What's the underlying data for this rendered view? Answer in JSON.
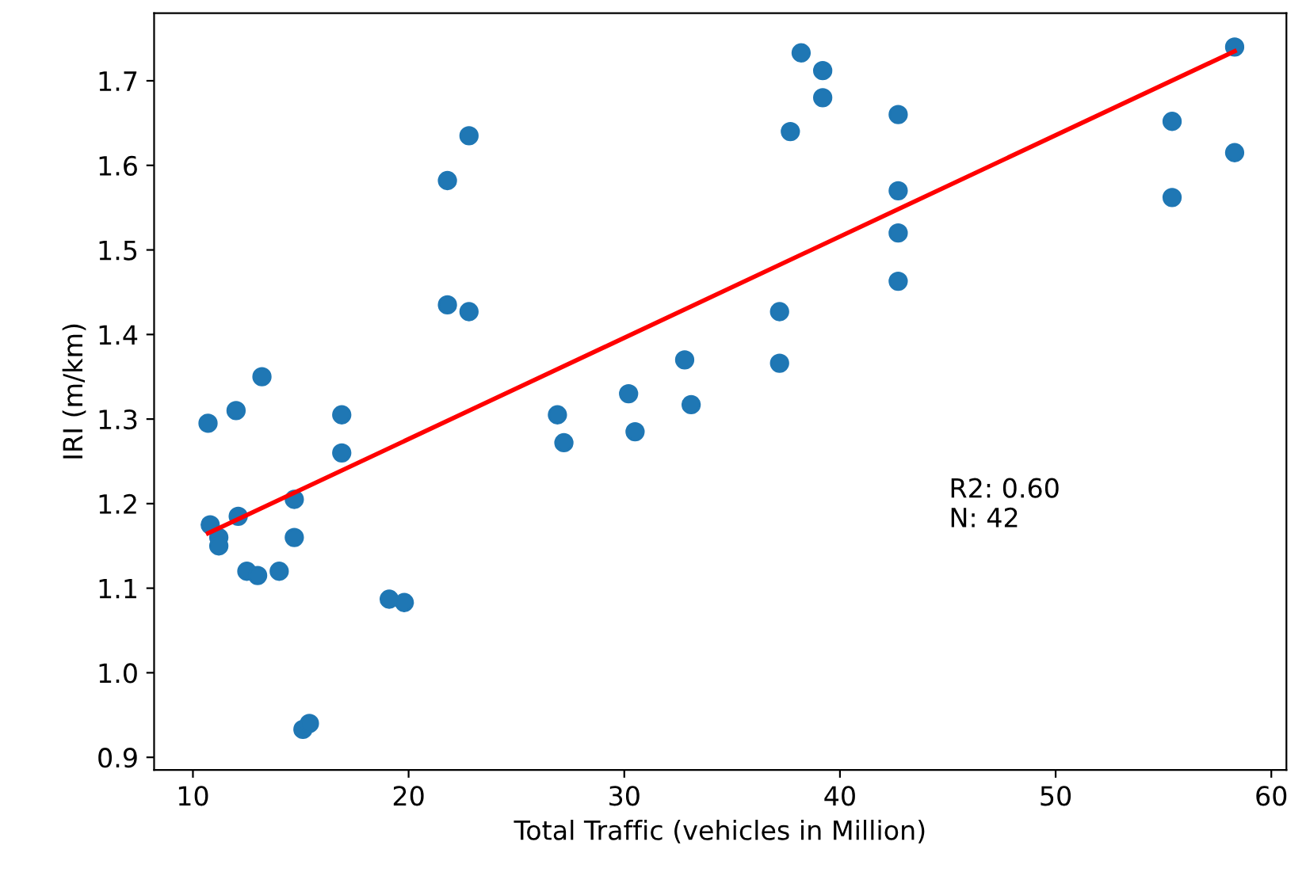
{
  "chart_data": {
    "type": "scatter",
    "xlabel": "Total Traffic (vehicles in Million)",
    "ylabel": "IRI (m/km)",
    "xlim": [
      8.2,
      60.7
    ],
    "ylim": [
      0.885,
      1.78
    ],
    "xticks": [
      10,
      20,
      30,
      40,
      50,
      60
    ],
    "yticks": [
      0.9,
      {
        "value": 1.0,
        "label": "1.0"
      },
      1.1,
      1.2,
      1.3,
      1.4,
      1.5,
      1.6,
      1.7
    ],
    "grid": false,
    "series": [
      {
        "color": "#1f77b4",
        "marker": "circle",
        "x": [
          10.7,
          10.8,
          11.2,
          11.2,
          12.0,
          12.1,
          12.5,
          13.0,
          13.2,
          14.0,
          14.7,
          14.7,
          15.1,
          15.4,
          16.9,
          16.9,
          19.1,
          19.8,
          21.8,
          21.8,
          22.8,
          22.8,
          26.9,
          27.2,
          30.2,
          30.5,
          32.8,
          33.1,
          37.2,
          37.2,
          37.7,
          38.2,
          39.2,
          39.2,
          42.7,
          42.7,
          42.7,
          42.7,
          55.4,
          55.4,
          58.3,
          58.3
        ],
        "values": [
          1.295,
          1.175,
          1.16,
          1.15,
          1.31,
          1.185,
          1.12,
          1.115,
          1.35,
          1.12,
          1.205,
          1.16,
          0.933,
          0.94,
          1.305,
          1.26,
          1.087,
          1.083,
          1.582,
          1.435,
          1.635,
          1.427,
          1.305,
          1.272,
          1.33,
          1.285,
          1.37,
          1.317,
          1.427,
          1.366,
          1.64,
          1.733,
          1.712,
          1.68,
          1.66,
          1.57,
          1.52,
          1.463,
          1.652,
          1.562,
          1.74,
          1.615
        ]
      },
      {
        "type": "line",
        "color": "#ff0000",
        "line_style": "solid",
        "x": [
          10.7,
          58.3
        ],
        "values": [
          1.165,
          1.735
        ]
      }
    ],
    "annotations": [
      "R2: 0.60\nN: 42"
    ]
  }
}
